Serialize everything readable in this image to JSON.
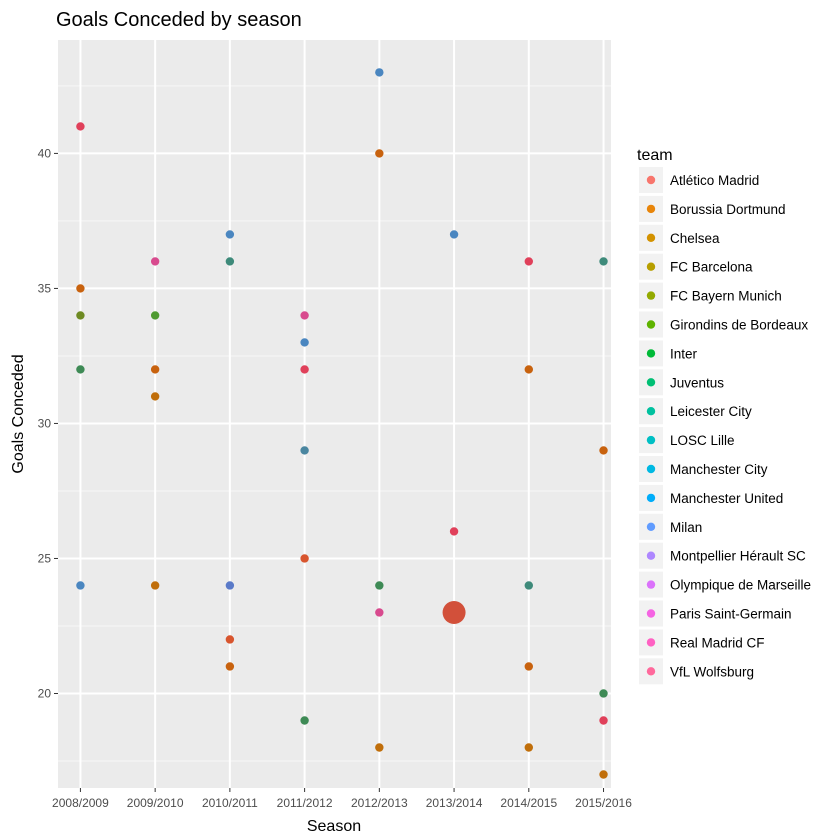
{
  "chart_data": {
    "type": "scatter",
    "title": "Goals Conceded by season",
    "xlabel": "Season",
    "ylabel": "Goals Conceded",
    "categories": [
      "2008/2009",
      "2009/2010",
      "2010/2011",
      "2011/2012",
      "2012/2013",
      "2013/2014",
      "2014/2015",
      "2015/2016"
    ],
    "ylim": [
      16.5,
      44.2
    ],
    "yticks": [
      20,
      25,
      30,
      35,
      40
    ],
    "grid": true,
    "legend": {
      "title": "team",
      "position": "right",
      "entries": [
        {
          "name": "Atlético Madrid",
          "color": "#F8766D"
        },
        {
          "name": "Borussia Dortmund",
          "color": "#E8850A"
        },
        {
          "name": "Chelsea",
          "color": "#D39200"
        },
        {
          "name": "FC Barcelona",
          "color": "#B79F00"
        },
        {
          "name": "FC Bayern Munich",
          "color": "#93AA00"
        },
        {
          "name": "Girondins de Bordeaux",
          "color": "#5EB300"
        },
        {
          "name": "Inter",
          "color": "#00BA38"
        },
        {
          "name": "Juventus",
          "color": "#00BF74"
        },
        {
          "name": "Leicester City",
          "color": "#00C19F"
        },
        {
          "name": "LOSC Lille",
          "color": "#00BFC4"
        },
        {
          "name": "Manchester City",
          "color": "#00B9E3"
        },
        {
          "name": "Manchester United",
          "color": "#00ADFA"
        },
        {
          "name": "Milan",
          "color": "#619CFF"
        },
        {
          "name": "Montpellier Hérault SC",
          "color": "#AE87FF"
        },
        {
          "name": "Olympique de Marseille",
          "color": "#DB72FB"
        },
        {
          "name": "Paris Saint-Germain",
          "color": "#F564E3"
        },
        {
          "name": "Real Madrid CF",
          "color": "#FF61C3"
        },
        {
          "name": "VfL Wolfsburg",
          "color": "#FF699C"
        }
      ]
    },
    "points": [
      {
        "x": "2008/2009",
        "y": 41,
        "color": "#E0405A"
      },
      {
        "x": "2008/2009",
        "y": 35,
        "color": "#C8620E"
      },
      {
        "x": "2008/2009",
        "y": 34,
        "color": "#6E8A22"
      },
      {
        "x": "2008/2009",
        "y": 32,
        "color": "#3E8A55"
      },
      {
        "x": "2008/2009",
        "y": 24,
        "color": "#4A86C0"
      },
      {
        "x": "2009/2010",
        "y": 36,
        "color": "#D84A8E"
      },
      {
        "x": "2009/2010",
        "y": 34,
        "color": "#4E9A30"
      },
      {
        "x": "2009/2010",
        "y": 32,
        "color": "#C8620E"
      },
      {
        "x": "2009/2010",
        "y": 31,
        "color": "#C06E0A"
      },
      {
        "x": "2009/2010",
        "y": 24,
        "color": "#C06E0A"
      },
      {
        "x": "2010/2011",
        "y": 37,
        "color": "#4A86C0"
      },
      {
        "x": "2010/2011",
        "y": 36,
        "color": "#3E8A7A"
      },
      {
        "x": "2010/2011",
        "y": 24,
        "color": "#5A7AC8"
      },
      {
        "x": "2010/2011",
        "y": 22,
        "color": "#D8552E"
      },
      {
        "x": "2010/2011",
        "y": 21,
        "color": "#C8620E"
      },
      {
        "x": "2011/2012",
        "y": 34,
        "color": "#D84A8E"
      },
      {
        "x": "2011/2012",
        "y": 33,
        "color": "#4A86C0"
      },
      {
        "x": "2011/2012",
        "y": 32,
        "color": "#E0405A"
      },
      {
        "x": "2011/2012",
        "y": 29,
        "color": "#4A86A0"
      },
      {
        "x": "2011/2012",
        "y": 25,
        "color": "#D8552E"
      },
      {
        "x": "2011/2012",
        "y": 19,
        "color": "#3E8A55"
      },
      {
        "x": "2012/2013",
        "y": 43,
        "color": "#4A86C0"
      },
      {
        "x": "2012/2013",
        "y": 40,
        "color": "#C8620E"
      },
      {
        "x": "2012/2013",
        "y": 24,
        "color": "#3E8A55"
      },
      {
        "x": "2012/2013",
        "y": 23,
        "color": "#D84A8E"
      },
      {
        "x": "2012/2013",
        "y": 18,
        "color": "#C06E0A"
      },
      {
        "x": "2013/2014",
        "y": 37,
        "color": "#4A86C0"
      },
      {
        "x": "2013/2014",
        "y": 26,
        "color": "#E0405A"
      },
      {
        "x": "2013/2014",
        "y": 23,
        "color": "#D2503A",
        "size": "large"
      },
      {
        "x": "2014/2015",
        "y": 36,
        "color": "#E0405A"
      },
      {
        "x": "2014/2015",
        "y": 32,
        "color": "#C8620E"
      },
      {
        "x": "2014/2015",
        "y": 24,
        "color": "#3E8A7A"
      },
      {
        "x": "2014/2015",
        "y": 21,
        "color": "#C8620E"
      },
      {
        "x": "2014/2015",
        "y": 18,
        "color": "#C06E0A"
      },
      {
        "x": "2015/2016",
        "y": 36,
        "color": "#3E8A7A"
      },
      {
        "x": "2015/2016",
        "y": 29,
        "color": "#C8620E"
      },
      {
        "x": "2015/2016",
        "y": 20,
        "color": "#3E8A55"
      },
      {
        "x": "2015/2016",
        "y": 19,
        "color": "#E0405A"
      },
      {
        "x": "2015/2016",
        "y": 17,
        "color": "#C06E0A"
      }
    ]
  }
}
